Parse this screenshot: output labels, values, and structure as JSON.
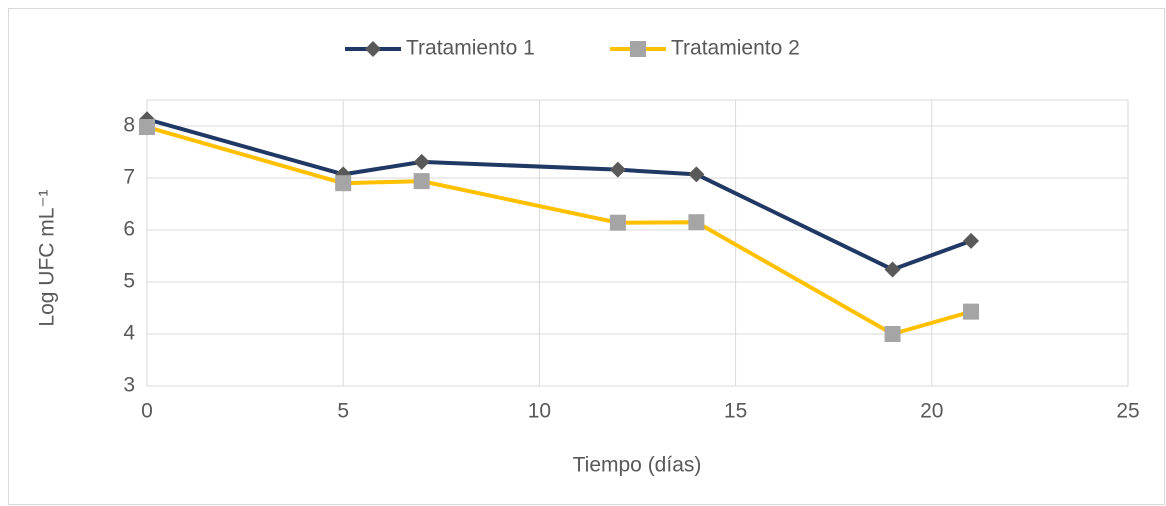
{
  "chart_data": {
    "type": "line",
    "x_label": "Tiempo (días)",
    "y_label": "Log UFC mL⁻¹",
    "x": [
      0,
      5,
      7,
      12,
      14,
      19,
      21
    ],
    "series": [
      {
        "name": "Tratamiento 1",
        "color": "#203864",
        "marker": "diamond",
        "marker_color": "#595959",
        "values": [
          8.13,
          7.07,
          7.31,
          7.16,
          7.07,
          5.24,
          5.79
        ]
      },
      {
        "name": "Tratamiento 2",
        "color": "#ffc000",
        "marker": "square",
        "marker_color": "#a5a5a5",
        "values": [
          7.98,
          6.9,
          6.94,
          6.14,
          6.15,
          4.0,
          4.43
        ]
      }
    ],
    "xlim": [
      0,
      25
    ],
    "xticks": [
      0,
      5,
      10,
      15,
      20,
      25
    ],
    "ylim": [
      3,
      8.5
    ],
    "yticks": [
      3,
      4,
      5,
      6,
      7,
      8
    ],
    "grid": true,
    "legend": "top"
  }
}
